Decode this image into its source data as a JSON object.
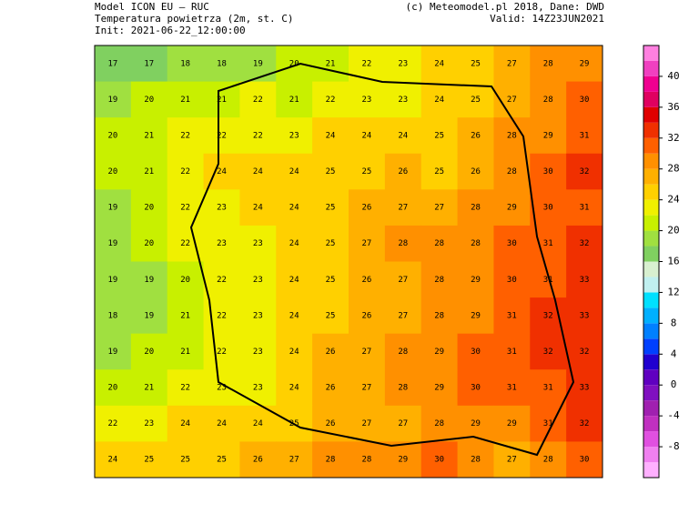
{
  "header": {
    "model": "Model ICON EU — RUC",
    "variable": "Temperatura powietrza (2m, st. C)",
    "init": "Init: 2021-06-22_12:00:00",
    "credit": "(c) Meteomodel.pl 2018, Dane: DWD",
    "valid": "Valid: 14Z23JUN2021"
  },
  "colorbar": {
    "bounds": [
      -12,
      44
    ],
    "step": 2,
    "ticks": [
      40,
      36,
      32,
      28,
      24,
      20,
      16,
      12,
      8,
      4,
      0,
      -4,
      -8
    ],
    "colors": [
      "#ffb0ff",
      "#f080f0",
      "#e050e0",
      "#c030c0",
      "#a020b0",
      "#8010c0",
      "#6000c0",
      "#2000d0",
      "#0040ff",
      "#0080ff",
      "#00b0ff",
      "#00e0ff",
      "#c0f0f0",
      "#d8f0d0",
      "#80d060",
      "#a0e040",
      "#c8f000",
      "#f0f000",
      "#ffd000",
      "#ffb000",
      "#ff9000",
      "#ff6000",
      "#f03000",
      "#e00000",
      "#e00060",
      "#f00090",
      "#f040c0",
      "#ff80e0"
    ]
  },
  "map": {
    "rows": [
      [
        17,
        17,
        18,
        18,
        19,
        20,
        21,
        22,
        23,
        24,
        25,
        27,
        28,
        29
      ],
      [
        19,
        20,
        21,
        21,
        22,
        21,
        22,
        23,
        23,
        24,
        25,
        27,
        28,
        30
      ],
      [
        20,
        21,
        22,
        22,
        22,
        23,
        24,
        24,
        24,
        25,
        26,
        28,
        29,
        31
      ],
      [
        20,
        21,
        22,
        24,
        24,
        24,
        25,
        25,
        26,
        25,
        26,
        28,
        30,
        32
      ],
      [
        19,
        20,
        22,
        23,
        24,
        24,
        25,
        26,
        27,
        27,
        28,
        29,
        30,
        31
      ],
      [
        19,
        20,
        22,
        23,
        23,
        24,
        25,
        27,
        28,
        28,
        28,
        30,
        31,
        32
      ],
      [
        19,
        19,
        20,
        22,
        23,
        24,
        25,
        26,
        27,
        28,
        29,
        30,
        31,
        33
      ],
      [
        18,
        19,
        21,
        22,
        23,
        24,
        25,
        26,
        27,
        28,
        29,
        31,
        32,
        33
      ],
      [
        19,
        20,
        21,
        22,
        23,
        24,
        26,
        27,
        28,
        29,
        30,
        31,
        32,
        32
      ],
      [
        20,
        21,
        22,
        23,
        23,
        24,
        26,
        27,
        28,
        29,
        30,
        31,
        31,
        33
      ],
      [
        22,
        23,
        24,
        24,
        24,
        25,
        26,
        27,
        27,
        28,
        29,
        29,
        31,
        32
      ],
      [
        24,
        25,
        25,
        25,
        26,
        27,
        28,
        28,
        29,
        30,
        28,
        27,
        28,
        30
      ]
    ]
  }
}
